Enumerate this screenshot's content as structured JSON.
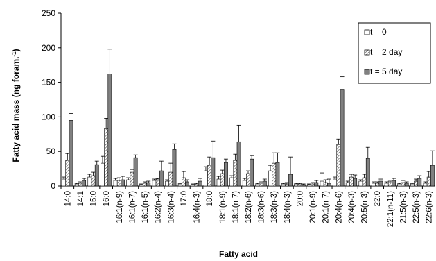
{
  "chart_data": {
    "type": "bar",
    "xlabel": "Fatty acid",
    "ylabel": "Fatty acid mass (ng foram.",
    "ylabel_sup": "-1",
    "ylabel_close": ")",
    "ylim": [
      0,
      250
    ],
    "yticks": [
      0,
      50,
      100,
      150,
      200,
      250
    ],
    "legend_position": "top-right",
    "grid": false,
    "categories": [
      "14:0",
      "14:1",
      "15:0",
      "16:0",
      "16:1(n-9)",
      "16:1(n-7)",
      "16:1(n-5)",
      "16:2(n-4)",
      "16:3(n-4)",
      "17:0",
      "16:4(n-3)",
      "18:0",
      "18:1(n-9)",
      "18:1(n-7)",
      "18:2(n-6)",
      "18:3(n-6)",
      "18:3(n-3)",
      "18:4(n-3)",
      "20:0",
      "20:1(n-9)",
      "20:1(n-7)",
      "20:4(n-6)",
      "20:4(n-3)",
      "20:5(n-3)",
      "22:0",
      "22:1(n-11)",
      "21:5(n-3)",
      "22:5(n-3)",
      "22:6(n-3)"
    ],
    "series": [
      {
        "name": "t = 0",
        "pattern": "open",
        "values": [
          10,
          3,
          13,
          33,
          8,
          9,
          2,
          8,
          7,
          3,
          2,
          22,
          10,
          12,
          8,
          3,
          22,
          3,
          3,
          2,
          7,
          10,
          5,
          7,
          4,
          4,
          3,
          3,
          4
        ],
        "errors": [
          3,
          1,
          4,
          10,
          3,
          3,
          1,
          2,
          2,
          1,
          1,
          6,
          4,
          3,
          3,
          1,
          8,
          1,
          1,
          1,
          12,
          3,
          2,
          2,
          2,
          2,
          1,
          1,
          2
        ]
      },
      {
        "name": "t = 2 day",
        "pattern": "hatched",
        "values": [
          37,
          4,
          15,
          83,
          8,
          20,
          4,
          10,
          20,
          12,
          3,
          30,
          18,
          37,
          18,
          4,
          33,
          3,
          3,
          3,
          5,
          60,
          13,
          12,
          4,
          5,
          5,
          7,
          13
        ],
        "errors": [
          10,
          2,
          5,
          15,
          4,
          4,
          2,
          1,
          13,
          9,
          1,
          12,
          5,
          9,
          4,
          2,
          15,
          2,
          1,
          2,
          4,
          8,
          4,
          5,
          2,
          2,
          3,
          3,
          8
        ]
      },
      {
        "name": "t = 5 day",
        "pattern": "solid",
        "values": [
          95,
          8,
          31,
          162,
          9,
          41,
          5,
          22,
          53,
          6,
          7,
          41,
          34,
          64,
          39,
          7,
          34,
          17,
          2,
          5,
          4,
          140,
          11,
          40,
          7,
          8,
          4,
          11,
          30
        ],
        "errors": [
          10,
          3,
          5,
          36,
          5,
          4,
          2,
          14,
          8,
          3,
          4,
          24,
          5,
          24,
          5,
          3,
          14,
          25,
          1,
          3,
          6,
          18,
          5,
          16,
          3,
          3,
          2,
          4,
          21
        ]
      }
    ]
  }
}
